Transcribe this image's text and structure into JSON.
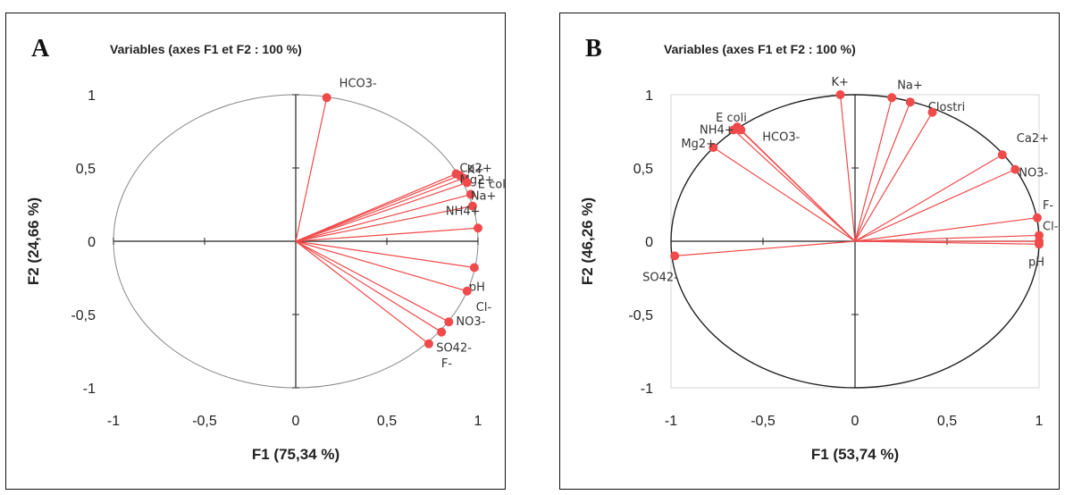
{
  "chart_data": [
    {
      "type": "scatter",
      "panel_label": "A",
      "title": "Variables (axes F1 et F2 : 100 %)",
      "xlabel": "F1 (75,34 %)",
      "ylabel": "F2 (24,66 %)",
      "xlim": [
        -1,
        1
      ],
      "ylim": [
        -1,
        1
      ],
      "x_ticks": [
        "-1",
        "-0,5",
        "0",
        "0,5",
        "1"
      ],
      "y_ticks": [
        "1",
        "0,5",
        "0",
        "-0,5",
        "-1"
      ],
      "correlation_circle": true,
      "vector_color": "#f04a4a",
      "variables": [
        {
          "label": "HCO3-",
          "x": 0.17,
          "y": 0.98
        },
        {
          "label": "Ca2+",
          "x": 0.88,
          "y": 0.46
        },
        {
          "label": "K+",
          "x": 0.9,
          "y": 0.45
        },
        {
          "label": "Mg2+",
          "x": 0.92,
          "y": 0.43
        },
        {
          "label": "E coli",
          "x": 0.94,
          "y": 0.4
        },
        {
          "label": "Na+",
          "x": 0.96,
          "y": 0.32
        },
        {
          "label": "NH4+",
          "x": 0.97,
          "y": 0.24
        },
        {
          "label": "",
          "x": 1.0,
          "y": 0.09
        },
        {
          "label": "pH",
          "x": 0.98,
          "y": -0.18
        },
        {
          "label": "Cl-",
          "x": 0.94,
          "y": -0.34
        },
        {
          "label": "NO3-",
          "x": 0.84,
          "y": -0.55
        },
        {
          "label": "SO42-",
          "x": 0.8,
          "y": -0.62
        },
        {
          "label": "F-",
          "x": 0.73,
          "y": -0.7
        }
      ]
    },
    {
      "type": "scatter",
      "panel_label": "B",
      "title": "Variables (axes F1 et F2 : 100 %)",
      "xlabel": "F1 (53,74 %)",
      "ylabel": "F2 (46,26 %)",
      "xlim": [
        -1,
        1
      ],
      "ylim": [
        -1,
        1
      ],
      "x_ticks": [
        "-1",
        "-0,5",
        "0",
        "0,5",
        "1"
      ],
      "y_ticks": [
        "1",
        "0,5",
        "0",
        "-0,5",
        "-1"
      ],
      "correlation_circle": true,
      "vector_color": "#f04a4a",
      "variables": [
        {
          "label": "K+",
          "x": -0.08,
          "y": 1.0
        },
        {
          "label": "Na+",
          "x": 0.2,
          "y": 0.98
        },
        {
          "label": "Clostri",
          "x": 0.3,
          "y": 0.95
        },
        {
          "label": "",
          "x": 0.42,
          "y": 0.88
        },
        {
          "label": "E coli",
          "x": -0.64,
          "y": 0.78
        },
        {
          "label": "NH4+",
          "x": -0.66,
          "y": 0.76
        },
        {
          "label": "HCO3-",
          "x": -0.62,
          "y": 0.76
        },
        {
          "label": "Mg2+",
          "x": -0.77,
          "y": 0.64
        },
        {
          "label": "Ca2+",
          "x": 0.8,
          "y": 0.59
        },
        {
          "label": "NO3-",
          "x": 0.87,
          "y": 0.49
        },
        {
          "label": "F-",
          "x": 0.99,
          "y": 0.16
        },
        {
          "label": "Cl-",
          "x": 1.0,
          "y": 0.04
        },
        {
          "label": "",
          "x": 1.0,
          "y": 0.0
        },
        {
          "label": "pH",
          "x": 1.0,
          "y": -0.02
        },
        {
          "label": "SO42-",
          "x": -0.98,
          "y": -0.1
        }
      ]
    }
  ]
}
